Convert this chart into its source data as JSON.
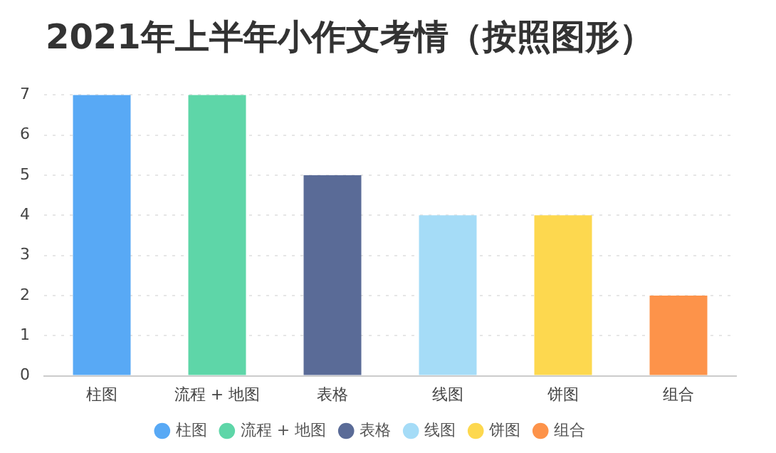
{
  "chart_data": {
    "type": "bar",
    "title": "2021年上半年小作文考情（按照图形）",
    "categories": [
      "柱图",
      "流程 + 地图",
      "表格",
      "线图",
      "饼图",
      "组合"
    ],
    "series": [
      {
        "name": "柱图",
        "color": "#58a9f5",
        "values": [
          7,
          null,
          null,
          null,
          null,
          null
        ]
      },
      {
        "name": "流程 + 地图",
        "color": "#5ed6a8",
        "values": [
          null,
          7,
          null,
          null,
          null,
          null
        ]
      },
      {
        "name": "表格",
        "color": "#5a6b97",
        "values": [
          null,
          null,
          5,
          null,
          null,
          null
        ]
      },
      {
        "name": "线图",
        "color": "#a5dcf7",
        "values": [
          null,
          null,
          null,
          4,
          null,
          null
        ]
      },
      {
        "name": "饼图",
        "color": "#fdd84f",
        "values": [
          null,
          null,
          null,
          null,
          4,
          null
        ]
      },
      {
        "name": "组合",
        "color": "#fd934a",
        "values": [
          null,
          null,
          null,
          null,
          null,
          2
        ]
      }
    ],
    "ylim": [
      0,
      7
    ],
    "yticks": [
      0,
      1,
      2,
      3,
      4,
      5,
      6,
      7
    ],
    "grid": "y",
    "legend": "bottom"
  }
}
